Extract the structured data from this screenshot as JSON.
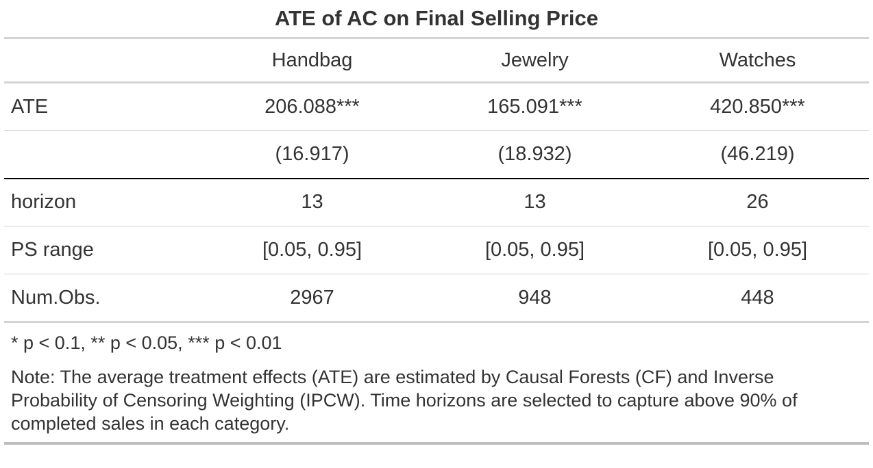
{
  "table": {
    "title": "ATE of AC on Final Selling Price",
    "columns": [
      "",
      "Handbag",
      "Jewelry",
      "Watches"
    ],
    "rows": [
      {
        "label": "ATE",
        "values": [
          "206.088***",
          "165.091***",
          "420.850***"
        ]
      },
      {
        "label": "",
        "values": [
          "(16.917)",
          "(18.932)",
          "(46.219)"
        ]
      },
      {
        "label": "horizon",
        "values": [
          "13",
          "13",
          "26"
        ]
      },
      {
        "label": "PS range",
        "values": [
          "[0.05, 0.95]",
          "[0.05, 0.95]",
          "[0.05, 0.95]"
        ]
      },
      {
        "label": "Num.Obs.",
        "values": [
          "2967",
          "948",
          "448"
        ]
      }
    ],
    "significance_note": "* p < 0.1, ** p < 0.05, *** p < 0.01",
    "note": "Note: The average treatment effects (ATE) are estimated by Causal Forests (CF) and Inverse Probability of Censoring Weighting (IPCW). Time horizons are selected to capture above 90% of completed sales in each category."
  }
}
